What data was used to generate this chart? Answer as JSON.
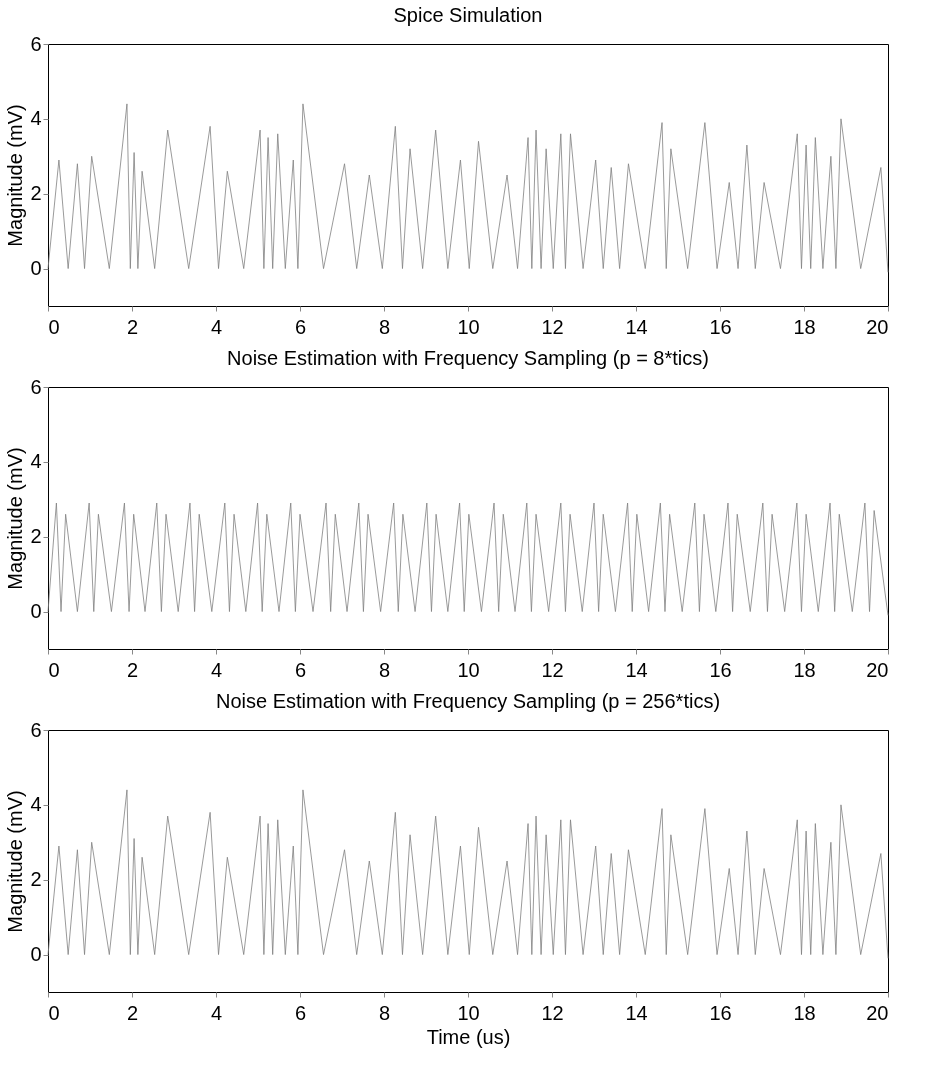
{
  "chart_data": [
    {
      "type": "line",
      "title": "Spice Simulation",
      "ylabel": "Magnitude (mV)",
      "xlim": [
        0,
        20
      ],
      "xticks": [
        0,
        2,
        4,
        6,
        8,
        10,
        12,
        14,
        16,
        18,
        20
      ],
      "ylim": [
        -1,
        6
      ],
      "yticks": [
        0,
        2,
        4,
        6
      ],
      "grid": false,
      "line_style": "solid",
      "marker": "none",
      "x": [
        0,
        0.26,
        0.48,
        0.7,
        0.87,
        1.04,
        1.46,
        1.88,
        1.96,
        2.05,
        2.14,
        2.24,
        2.54,
        2.85,
        3.35,
        3.86,
        4.06,
        4.27,
        4.66,
        5.05,
        5.14,
        5.24,
        5.35,
        5.47,
        5.65,
        5.84,
        5.95,
        6.07,
        6.56,
        7.06,
        7.35,
        7.65,
        7.96,
        8.27,
        8.44,
        8.62,
        8.92,
        9.23,
        9.52,
        9.82,
        10.03,
        10.25,
        10.59,
        10.93,
        11.18,
        11.43,
        11.52,
        11.62,
        11.74,
        11.86,
        12.03,
        12.21,
        12.32,
        12.44,
        12.74,
        13.04,
        13.22,
        13.41,
        13.61,
        13.82,
        14.22,
        14.62,
        14.72,
        14.83,
        15.23,
        15.64,
        15.93,
        16.22,
        16.43,
        16.64,
        16.84,
        17.05,
        17.44,
        17.84,
        17.94,
        18.05,
        18.16,
        18.27,
        18.45,
        18.64,
        18.76,
        18.88,
        19.35,
        19.83,
        20
      ],
      "series": [
        {
          "color": "#808080",
          "values": [
            0,
            2.9,
            0,
            2.8,
            0,
            3.0,
            0,
            4.4,
            0,
            3.1,
            0,
            2.6,
            0,
            3.7,
            0,
            3.8,
            0,
            2.6,
            0,
            3.7,
            0,
            3.5,
            0,
            3.6,
            0,
            2.9,
            0,
            4.4,
            0,
            2.8,
            0,
            2.5,
            0,
            3.8,
            0,
            3.2,
            0,
            3.7,
            0,
            2.9,
            0,
            3.4,
            0,
            2.5,
            0,
            3.5,
            0,
            3.7,
            0,
            3.2,
            0,
            3.6,
            0,
            3.6,
            0,
            2.9,
            0,
            2.7,
            0,
            2.8,
            0,
            3.9,
            0,
            3.2,
            0,
            3.9,
            0,
            2.3,
            0,
            3.3,
            0,
            2.3,
            0,
            3.6,
            0,
            3.3,
            0,
            3.5,
            0,
            3.0,
            0,
            4.0,
            0,
            2.7,
            -0.1
          ]
        }
      ]
    },
    {
      "type": "line",
      "title": "Noise Estimation with Frequency Sampling (p = 8*tics)",
      "ylabel": "Magnitude (mV)",
      "xlim": [
        0,
        20
      ],
      "xticks": [
        0,
        2,
        4,
        6,
        8,
        10,
        12,
        14,
        16,
        18,
        20
      ],
      "ylim": [
        -1,
        6
      ],
      "yticks": [
        0,
        2,
        4,
        6
      ],
      "grid": false,
      "line_style": "solid",
      "marker": "none",
      "x": [
        0,
        0.2,
        0.31,
        0.42,
        0.7,
        0.98,
        1.09,
        1.2,
        1.51,
        1.82,
        1.93,
        2.04,
        2.31,
        2.59,
        2.7,
        2.81,
        3.1,
        3.38,
        3.49,
        3.6,
        3.9,
        4.21,
        4.32,
        4.43,
        4.71,
        4.99,
        5.1,
        5.21,
        5.5,
        5.78,
        5.89,
        6.0,
        6.31,
        6.62,
        6.73,
        6.84,
        7.12,
        7.4,
        7.51,
        7.62,
        7.92,
        8.23,
        8.34,
        8.45,
        8.74,
        9.02,
        9.13,
        9.24,
        9.52,
        9.8,
        9.91,
        10.02,
        10.32,
        10.62,
        10.73,
        10.84,
        11.12,
        11.4,
        11.51,
        11.62,
        11.92,
        12.21,
        12.32,
        12.43,
        12.72,
        13.0,
        13.11,
        13.22,
        13.51,
        13.8,
        13.91,
        14.02,
        14.3,
        14.58,
        14.69,
        14.8,
        15.1,
        15.4,
        15.51,
        15.62,
        15.9,
        16.19,
        16.3,
        16.41,
        16.72,
        17.02,
        17.13,
        17.24,
        17.54,
        17.83,
        17.94,
        18.05,
        18.34,
        18.62,
        18.73,
        18.84,
        19.15,
        19.45,
        19.56,
        19.67,
        20
      ],
      "series": [
        {
          "color": "#808080",
          "values": [
            0,
            2.9,
            0,
            2.6,
            0,
            2.9,
            0,
            2.6,
            0,
            2.9,
            0,
            2.6,
            0,
            2.9,
            0,
            2.6,
            0,
            2.9,
            0,
            2.6,
            0,
            2.9,
            0,
            2.6,
            0,
            2.9,
            0,
            2.6,
            0,
            2.9,
            0,
            2.6,
            0,
            2.9,
            0,
            2.6,
            0,
            2.9,
            0,
            2.6,
            0,
            2.9,
            0,
            2.6,
            0,
            2.9,
            0,
            2.6,
            0,
            2.9,
            0,
            2.6,
            0,
            2.9,
            0,
            2.6,
            0,
            2.9,
            0,
            2.6,
            0,
            2.9,
            0,
            2.6,
            0,
            2.9,
            0,
            2.6,
            0,
            2.9,
            0,
            2.6,
            0,
            2.9,
            0,
            2.6,
            0,
            2.9,
            0,
            2.6,
            0,
            2.9,
            0,
            2.6,
            0,
            2.9,
            0,
            2.6,
            0,
            2.9,
            0,
            2.6,
            0,
            2.9,
            0,
            2.6,
            0,
            2.9,
            0,
            2.7,
            -0.1
          ]
        }
      ]
    },
    {
      "type": "line",
      "title": "Noise Estimation with Frequency Sampling (p = 256*tics)",
      "ylabel": "Magnitude (mV)",
      "xlabel": "Time (us)",
      "xlim": [
        0,
        20
      ],
      "xticks": [
        0,
        2,
        4,
        6,
        8,
        10,
        12,
        14,
        16,
        18,
        20
      ],
      "ylim": [
        -1,
        6
      ],
      "yticks": [
        0,
        2,
        4,
        6
      ],
      "grid": false,
      "line_style": "solid",
      "marker": "none",
      "x": [
        0,
        0.26,
        0.48,
        0.7,
        0.87,
        1.04,
        1.46,
        1.88,
        1.96,
        2.05,
        2.14,
        2.24,
        2.54,
        2.85,
        3.35,
        3.86,
        4.06,
        4.27,
        4.66,
        5.05,
        5.14,
        5.24,
        5.35,
        5.47,
        5.65,
        5.84,
        5.95,
        6.07,
        6.56,
        7.06,
        7.35,
        7.65,
        7.96,
        8.27,
        8.44,
        8.62,
        8.92,
        9.23,
        9.52,
        9.82,
        10.03,
        10.25,
        10.59,
        10.93,
        11.18,
        11.43,
        11.52,
        11.62,
        11.74,
        11.86,
        12.03,
        12.21,
        12.32,
        12.44,
        12.74,
        13.04,
        13.22,
        13.41,
        13.61,
        13.82,
        14.22,
        14.62,
        14.72,
        14.83,
        15.23,
        15.64,
        15.93,
        16.22,
        16.43,
        16.64,
        16.84,
        17.05,
        17.44,
        17.84,
        17.94,
        18.05,
        18.16,
        18.27,
        18.45,
        18.64,
        18.76,
        18.88,
        19.35,
        19.83,
        20
      ],
      "series": [
        {
          "color": "#808080",
          "values": [
            0,
            2.9,
            0,
            2.8,
            0,
            3.0,
            0,
            4.4,
            0,
            3.1,
            0,
            2.6,
            0,
            3.7,
            0,
            3.8,
            0,
            2.6,
            0,
            3.7,
            0,
            3.5,
            0,
            3.6,
            0,
            2.9,
            0,
            4.4,
            0,
            2.8,
            0,
            2.5,
            0,
            3.8,
            0,
            3.2,
            0,
            3.7,
            0,
            2.9,
            0,
            3.4,
            0,
            2.5,
            0,
            3.5,
            0,
            3.7,
            0,
            3.2,
            0,
            3.6,
            0,
            3.6,
            0,
            2.9,
            0,
            2.7,
            0,
            2.8,
            0,
            3.9,
            0,
            3.2,
            0,
            3.9,
            0,
            2.3,
            0,
            3.3,
            0,
            2.3,
            0,
            3.6,
            0,
            3.3,
            0,
            3.5,
            0,
            3.0,
            0,
            4.0,
            0,
            2.7,
            -0.1
          ]
        }
      ]
    }
  ]
}
